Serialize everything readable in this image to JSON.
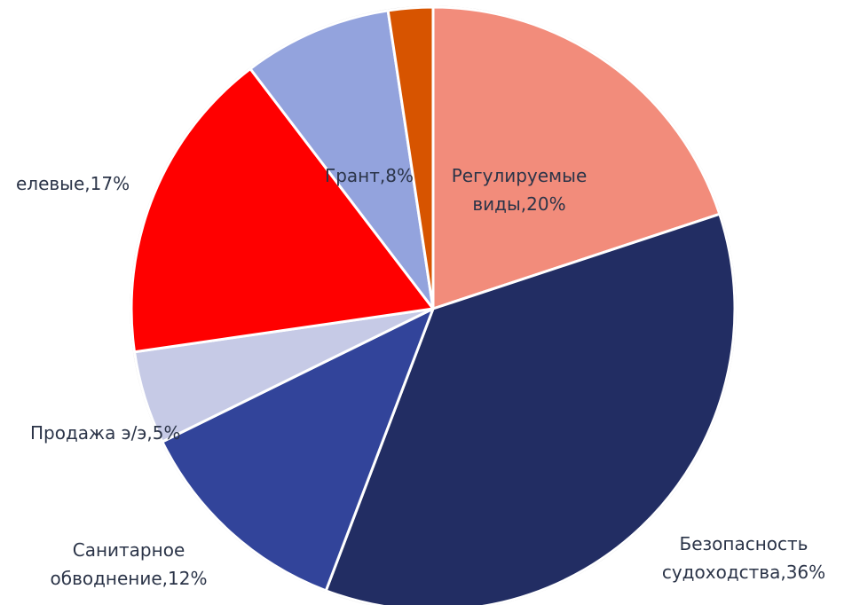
{
  "chart_data": {
    "type": "pie",
    "title": "",
    "slices": [
      {
        "label_lines": [
          "Регулируемые",
          "виды,20%"
        ],
        "value": 20,
        "color": "#f28c7b"
      },
      {
        "label_lines": [
          "Безопасность",
          "судоходства,36%"
        ],
        "value": 36,
        "color": "#222d63"
      },
      {
        "label_lines": [
          "Санитарное",
          "обводнение,12%"
        ],
        "value": 12,
        "color": "#32449a"
      },
      {
        "label_lines": [
          "Продажа э/э,5%"
        ],
        "value": 5,
        "color": "#c6cae6"
      },
      {
        "label_lines": [
          "елевые,17%"
        ],
        "value": 17,
        "color": "#ff0000"
      },
      {
        "label_lines": [
          "Грант,8%"
        ],
        "value": 8,
        "color": "#93a3dd"
      },
      {
        "label_lines": [
          ""
        ],
        "value": 2.4,
        "color": "#d75400"
      }
    ],
    "legend": "none",
    "label_color": "#2b3448"
  }
}
